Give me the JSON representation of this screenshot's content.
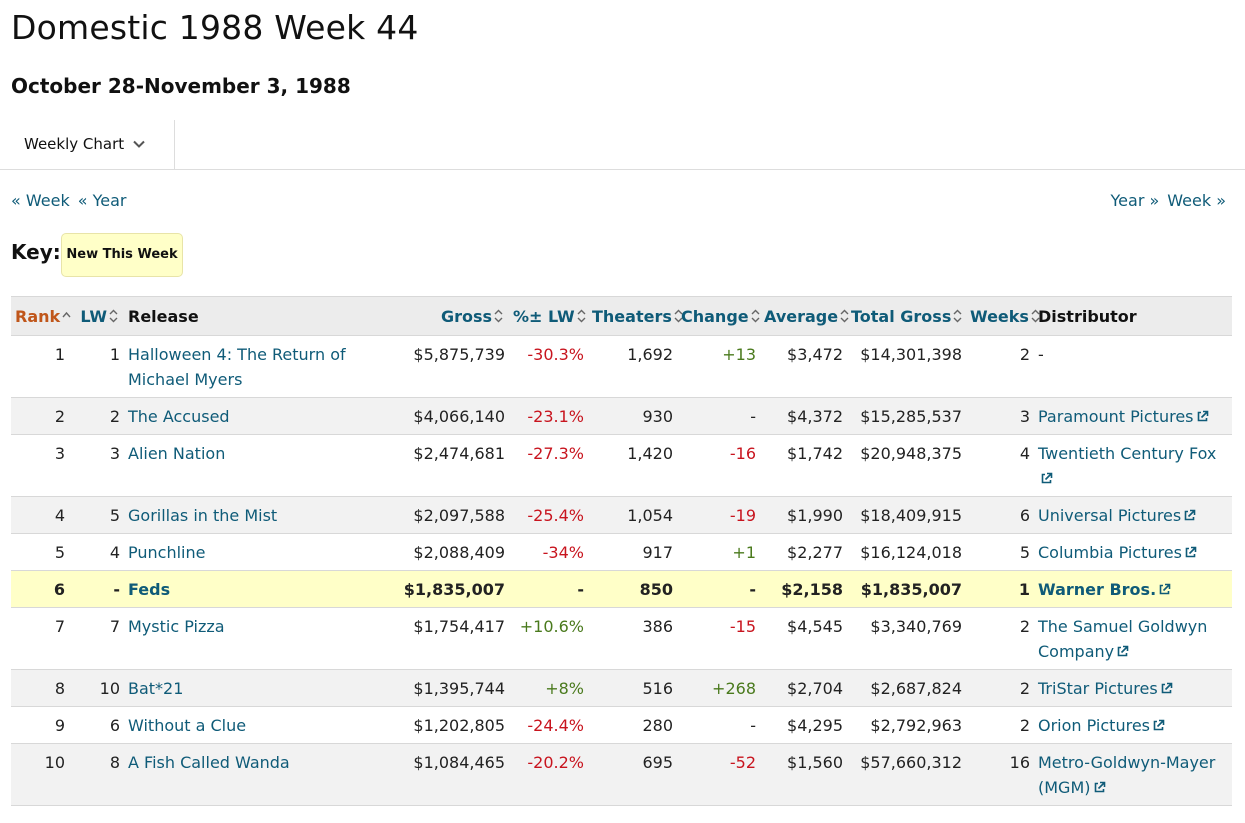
{
  "page": {
    "title": "Domestic 1988 Week 44",
    "subtitle": "October 28-November 3, 1988"
  },
  "chart_selector": {
    "label": "Weekly Chart",
    "icon": "chevron-down-icon"
  },
  "nav": {
    "prev_week": "« Week",
    "prev_year": "« Year",
    "next_year": "Year »",
    "next_week": "Week »"
  },
  "key": {
    "label": "Key:",
    "badge": "New This Week",
    "badge_color": "#ffffc8"
  },
  "colors": {
    "link": "#0f5b78",
    "active_sort": "#c0561a",
    "negative": "#c8141e",
    "positive": "#4a7a1d"
  },
  "table": {
    "headers": {
      "rank": "Rank",
      "lw": "LW",
      "release": "Release",
      "gross": "Gross",
      "pct_lw": "%± LW",
      "theaters": "Theaters",
      "change": "Change",
      "average": "Average",
      "total_gross": "Total Gross",
      "weeks": "Weeks",
      "distributor": "Distributor"
    },
    "rows": [
      {
        "rank": "1",
        "lw": "1",
        "release": "Halloween 4: The Return of Michael Myers",
        "gross": "$5,875,739",
        "pct_lw": "-30.3%",
        "theaters": "1,692",
        "change": "+13",
        "average": "$3,472",
        "total_gross": "$14,301,398",
        "weeks": "2",
        "distributor": "-",
        "new": false
      },
      {
        "rank": "2",
        "lw": "2",
        "release": "The Accused",
        "gross": "$4,066,140",
        "pct_lw": "-23.1%",
        "theaters": "930",
        "change": "-",
        "average": "$4,372",
        "total_gross": "$15,285,537",
        "weeks": "3",
        "distributor": "Paramount Pictures",
        "new": false
      },
      {
        "rank": "3",
        "lw": "3",
        "release": "Alien Nation",
        "gross": "$2,474,681",
        "pct_lw": "-27.3%",
        "theaters": "1,420",
        "change": "-16",
        "average": "$1,742",
        "total_gross": "$20,948,375",
        "weeks": "4",
        "distributor": "Twentieth Century Fox",
        "new": false
      },
      {
        "rank": "4",
        "lw": "5",
        "release": "Gorillas in the Mist",
        "gross": "$2,097,588",
        "pct_lw": "-25.4%",
        "theaters": "1,054",
        "change": "-19",
        "average": "$1,990",
        "total_gross": "$18,409,915",
        "weeks": "6",
        "distributor": "Universal Pictures",
        "new": false
      },
      {
        "rank": "5",
        "lw": "4",
        "release": "Punchline",
        "gross": "$2,088,409",
        "pct_lw": "-34%",
        "theaters": "917",
        "change": "+1",
        "average": "$2,277",
        "total_gross": "$16,124,018",
        "weeks": "5",
        "distributor": "Columbia Pictures",
        "new": false
      },
      {
        "rank": "6",
        "lw": "-",
        "release": "Feds",
        "gross": "$1,835,007",
        "pct_lw": "-",
        "theaters": "850",
        "change": "-",
        "average": "$2,158",
        "total_gross": "$1,835,007",
        "weeks": "1",
        "distributor": "Warner Bros.",
        "new": true
      },
      {
        "rank": "7",
        "lw": "7",
        "release": "Mystic Pizza",
        "gross": "$1,754,417",
        "pct_lw": "+10.6%",
        "theaters": "386",
        "change": "-15",
        "average": "$4,545",
        "total_gross": "$3,340,769",
        "weeks": "2",
        "distributor": "The Samuel Goldwyn Company",
        "new": false
      },
      {
        "rank": "8",
        "lw": "10",
        "release": "Bat*21",
        "gross": "$1,395,744",
        "pct_lw": "+8%",
        "theaters": "516",
        "change": "+268",
        "average": "$2,704",
        "total_gross": "$2,687,824",
        "weeks": "2",
        "distributor": "TriStar Pictures",
        "new": false
      },
      {
        "rank": "9",
        "lw": "6",
        "release": "Without a Clue",
        "gross": "$1,202,805",
        "pct_lw": "-24.4%",
        "theaters": "280",
        "change": "-",
        "average": "$4,295",
        "total_gross": "$2,792,963",
        "weeks": "2",
        "distributor": "Orion Pictures",
        "new": false
      },
      {
        "rank": "10",
        "lw": "8",
        "release": "A Fish Called Wanda",
        "gross": "$1,084,465",
        "pct_lw": "-20.2%",
        "theaters": "695",
        "change": "-52",
        "average": "$1,560",
        "total_gross": "$57,660,312",
        "weeks": "16",
        "distributor": "Metro-Goldwyn-Mayer (MGM)",
        "new": false
      }
    ]
  }
}
